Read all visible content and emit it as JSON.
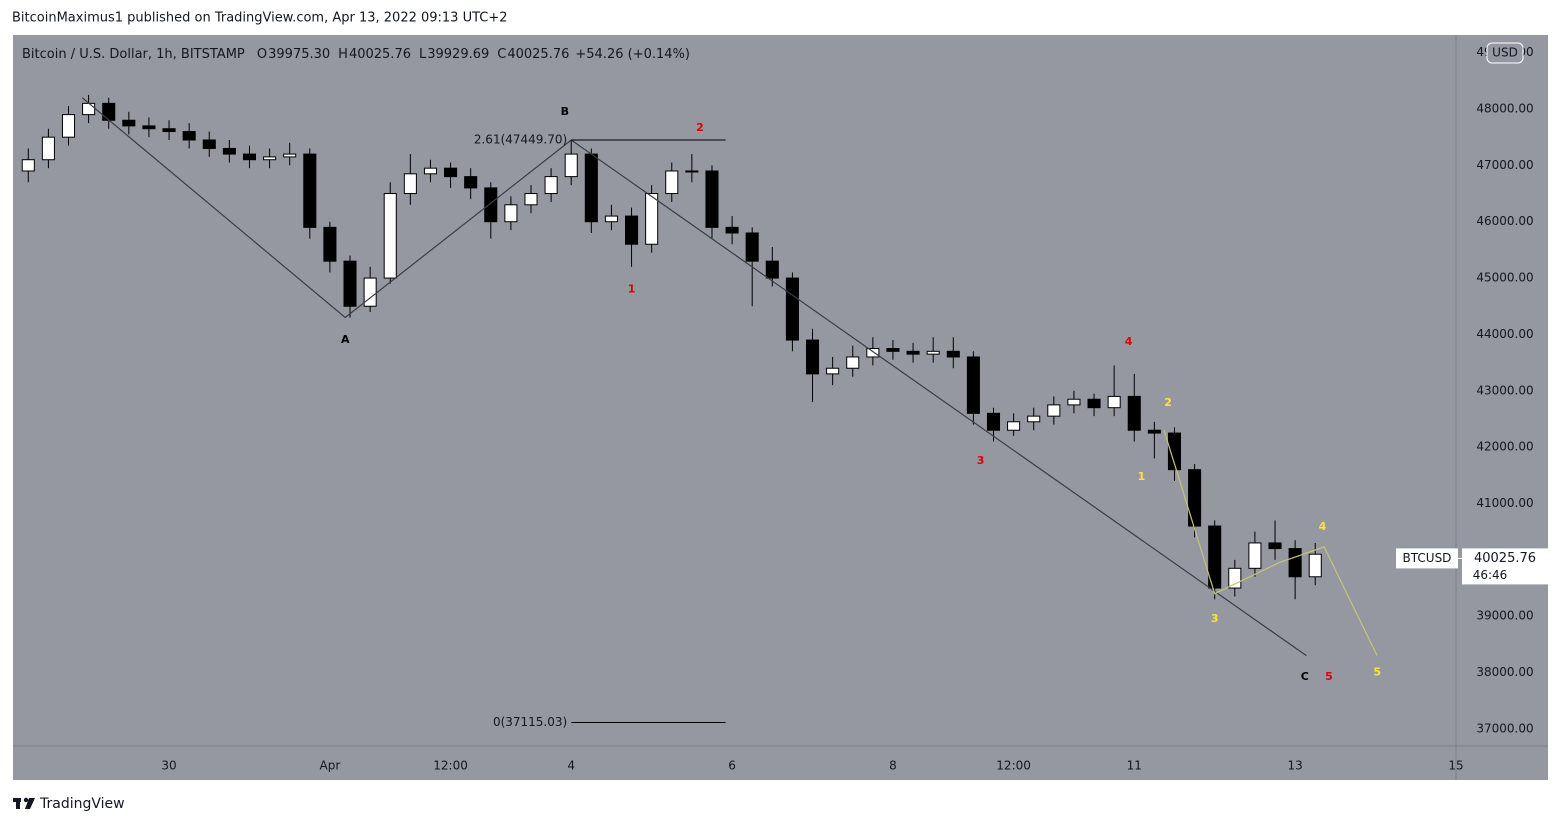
{
  "chart_data": {
    "type": "candlestick",
    "header": "BitcoinMaximus1 published on TradingView.com, Apr 13, 2022 09:13 UTC+2",
    "title": "Bitcoin / U.S. Dollar, 1h, BITSTAMP",
    "ohlc_legend": [
      {
        "key": "O",
        "value": "39975.30"
      },
      {
        "key": "H",
        "value": "40025.76"
      },
      {
        "key": "L",
        "value": "39929.69"
      },
      {
        "key": "C",
        "value": "40025.76"
      }
    ],
    "change": "+54.26 (+0.14%)",
    "currency": "USD",
    "footer": "TradingView",
    "up_color": "#ffffff",
    "down_color": "#000000",
    "x": [
      -2.75,
      -2.5,
      -2.25,
      -2,
      -1.75,
      -1.5,
      -1.25,
      -1,
      -0.75,
      -0.5,
      -0.25,
      0,
      0.25,
      0.5,
      0.75,
      1,
      1.25,
      1.5,
      1.75,
      2,
      2.25,
      2.5,
      2.75,
      3,
      3.25,
      3.5,
      3.75,
      4,
      4.25,
      4.5,
      4.75,
      5,
      5.25,
      5.5,
      5.75,
      6,
      6.25,
      6.5,
      6.75,
      7,
      7.25,
      7.5,
      7.75,
      8,
      8.25,
      8.5,
      8.75,
      9,
      9.25,
      9.5,
      9.75,
      10,
      10.25,
      10.5,
      10.75,
      11,
      11.25,
      11.5,
      11.75,
      12,
      12.25,
      12.5,
      12.75,
      13,
      13.25
    ],
    "open": [
      46900,
      47100,
      47500,
      47900,
      48100,
      47800,
      47700,
      47650,
      47600,
      47450,
      47300,
      47200,
      47100,
      47150,
      47200,
      45900,
      45300,
      44500,
      45000,
      46500,
      46850,
      46950,
      46800,
      46600,
      46000,
      46300,
      46500,
      46800,
      47200,
      46000,
      46100,
      45600,
      46500,
      46900,
      46900,
      45900,
      45800,
      45300,
      45000,
      43900,
      43300,
      43400,
      43600,
      43750,
      43700,
      43650,
      43700,
      43600,
      42600,
      42300,
      42450,
      42550,
      42750,
      42850,
      42700,
      42900,
      42300,
      42250,
      41600,
      40600,
      39500,
      39850,
      40300,
      40200,
      39700
    ],
    "high": [
      47300,
      47650,
      48050,
      48250,
      48200,
      47950,
      47850,
      47800,
      47750,
      47600,
      47450,
      47350,
      47300,
      47400,
      47300,
      46000,
      45400,
      45200,
      46700,
      47200,
      47100,
      47050,
      46950,
      46700,
      46450,
      46650,
      46950,
      47449.7,
      47300,
      46300,
      46250,
      46650,
      47050,
      47200,
      47000,
      46100,
      45900,
      45550,
      45100,
      44100,
      43600,
      43800,
      43950,
      43900,
      43850,
      43950,
      43950,
      43700,
      42700,
      42600,
      42700,
      42900,
      43000,
      42950,
      43450,
      43300,
      42450,
      42350,
      41700,
      40700,
      40000,
      40500,
      40700,
      40350,
      40300
    ],
    "low": [
      46700,
      46950,
      47350,
      47750,
      47650,
      47550,
      47500,
      47450,
      47300,
      47150,
      47050,
      46950,
      46950,
      47000,
      45700,
      45100,
      44300,
      44400,
      44900,
      46300,
      46700,
      46600,
      46400,
      45700,
      45850,
      46150,
      46350,
      46650,
      45800,
      45850,
      45200,
      45450,
      46350,
      46700,
      45700,
      45600,
      44500,
      44850,
      43700,
      42800,
      43100,
      43250,
      43450,
      43550,
      43500,
      43500,
      43400,
      42400,
      42100,
      42200,
      42300,
      42400,
      42600,
      42550,
      42550,
      42100,
      41800,
      41400,
      40400,
      39300,
      39350,
      39700,
      40000,
      39300,
      39550
    ],
    "close": [
      47100,
      47500,
      47900,
      48100,
      47800,
      47700,
      47650,
      47600,
      47450,
      47300,
      47200,
      47100,
      47150,
      47200,
      45900,
      45300,
      44500,
      45000,
      46500,
      46850,
      46950,
      46800,
      46600,
      46000,
      46300,
      46500,
      46800,
      47200,
      46000,
      46100,
      45600,
      46500,
      46900,
      46900,
      45900,
      45800,
      45300,
      45000,
      43900,
      43300,
      43400,
      43600,
      43750,
      43700,
      43650,
      43700,
      43600,
      42600,
      42300,
      42450,
      42550,
      42750,
      42850,
      42700,
      42900,
      42300,
      42250,
      41600,
      40600,
      39500,
      39850,
      40300,
      40200,
      39700,
      40100
    ],
    "xlim": [
      -2.94,
      15
    ],
    "xticks": [
      {
        "value": -1,
        "label": "30"
      },
      {
        "value": 1,
        "label": "Apr"
      },
      {
        "value": 2.5,
        "label": "12:00"
      },
      4,
      6,
      8,
      {
        "value": 9.5,
        "label": "12:00"
      },
      11,
      13,
      15
    ],
    "ylim": [
      36697,
      49313
    ],
    "yticks": [
      {
        "value": 37000,
        "label": "37000.00"
      },
      {
        "value": 38000,
        "label": "38000.00"
      },
      {
        "value": 39000,
        "label": "39000.00"
      },
      {
        "value": 40000,
        "label": "40000.00"
      },
      {
        "value": 41000,
        "label": "41000.00"
      },
      {
        "value": 42000,
        "label": "42000.00"
      },
      {
        "value": 43000,
        "label": "43000.00"
      },
      {
        "value": 44000,
        "label": "44000.00"
      },
      {
        "value": 45000,
        "label": "45000.00"
      },
      {
        "value": 46000,
        "label": "46000.00"
      },
      {
        "value": 47000,
        "label": "47000.00"
      },
      {
        "value": 48000,
        "label": "48000.00"
      },
      {
        "value": 49000,
        "label": "49000.00"
      }
    ],
    "wave_lines": [
      {
        "color": "#3a3d45",
        "x": [
          -2.08,
          1.19,
          4.0,
          13.14
        ],
        "y": [
          48200,
          44300,
          47449.7,
          38300
        ]
      },
      {
        "color": "#c8c27a",
        "x": [
          11.37,
          12.0,
          12.8,
          13.36,
          14.02
        ],
        "y": [
          42300,
          39400,
          39950,
          40230,
          38300
        ]
      }
    ],
    "fib_levels": [
      {
        "label": "2.61(47449.70)",
        "value": 47449.7,
        "x": [
          4.0,
          5.92
        ]
      },
      {
        "label": "0(37115.03)",
        "value": 37115.03,
        "x": [
          4.0,
          5.92
        ]
      }
    ],
    "annotations": [
      {
        "text": "A",
        "x": 1.19,
        "y": 43900,
        "color": "#000000"
      },
      {
        "text": "B",
        "x": 3.92,
        "y": 47950,
        "color": "#000000"
      },
      {
        "text": "C",
        "x": 13.12,
        "y": 37920,
        "color": "#000000"
      },
      {
        "text": "1",
        "x": 4.75,
        "y": 44800,
        "color": "#e00000"
      },
      {
        "text": "2",
        "x": 5.6,
        "y": 47660,
        "color": "#e00000"
      },
      {
        "text": "3",
        "x": 9.09,
        "y": 41750,
        "color": "#e00000"
      },
      {
        "text": "4",
        "x": 10.93,
        "y": 43870,
        "color": "#e00000"
      },
      {
        "text": "5",
        "x": 13.42,
        "y": 37920,
        "color": "#e00000"
      },
      {
        "text": "1",
        "x": 11.09,
        "y": 41470,
        "color": "#ffe23a"
      },
      {
        "text": "2",
        "x": 11.42,
        "y": 42780,
        "color": "#ffe23a"
      },
      {
        "text": "3",
        "x": 12.0,
        "y": 38950,
        "color": "#ffe23a"
      },
      {
        "text": "4",
        "x": 13.34,
        "y": 40580,
        "color": "#ffe23a"
      },
      {
        "text": "5",
        "x": 14.02,
        "y": 38000,
        "color": "#ffe23a"
      }
    ],
    "last_price": {
      "symbol": "BTCUSD",
      "value": 40025.76,
      "value_label": "40025.76",
      "countdown": "46:46"
    }
  }
}
